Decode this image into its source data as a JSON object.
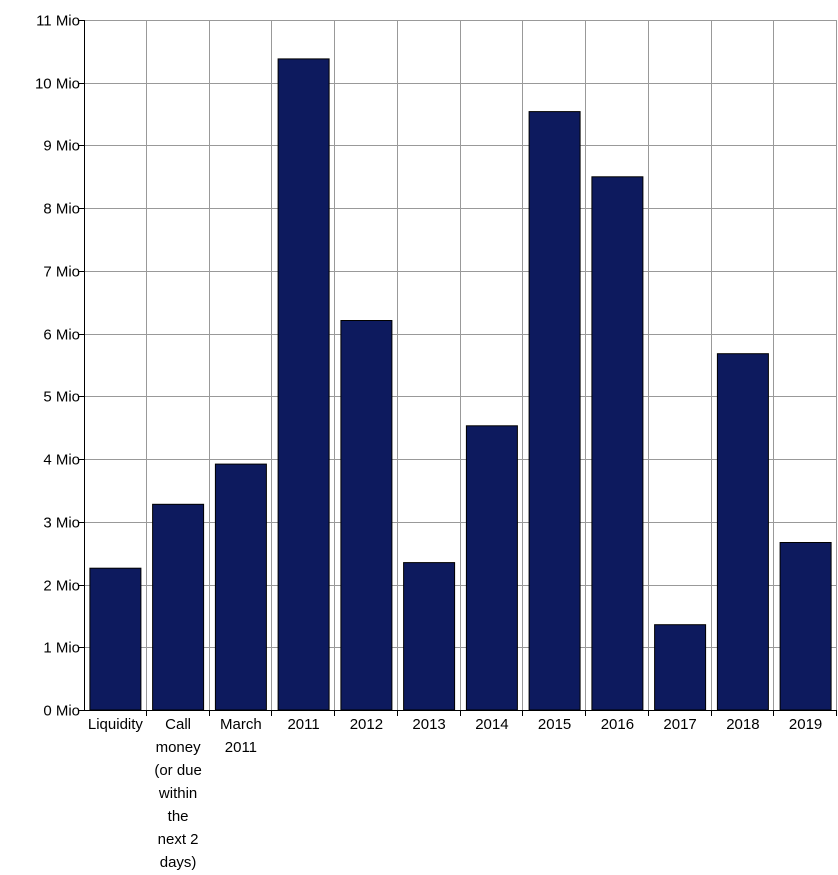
{
  "chart_data": {
    "type": "bar",
    "categories": [
      [
        "Liquidity"
      ],
      [
        "Call",
        "money",
        "(or due",
        "within",
        "the",
        "next 2",
        "days)"
      ],
      [
        "March",
        "2011"
      ],
      [
        "2011"
      ],
      [
        "2012"
      ],
      [
        "2013"
      ],
      [
        "2014"
      ],
      [
        "2015"
      ],
      [
        "2016"
      ],
      [
        "2017"
      ],
      [
        "2018"
      ],
      [
        "2019"
      ]
    ],
    "values": [
      2260000,
      3280000,
      3920000,
      10380000,
      6210000,
      2350000,
      4530000,
      9540000,
      8500000,
      1360000,
      5680000,
      2670000
    ],
    "ylim": [
      0,
      11000000
    ],
    "y_ticks": [
      {
        "value": 0,
        "label": "0 Mio"
      },
      {
        "value": 1000000,
        "label": "1 Mio"
      },
      {
        "value": 2000000,
        "label": "2 Mio"
      },
      {
        "value": 3000000,
        "label": "3 Mio"
      },
      {
        "value": 4000000,
        "label": "4 Mio"
      },
      {
        "value": 5000000,
        "label": "5 Mio"
      },
      {
        "value": 6000000,
        "label": "6 Mio"
      },
      {
        "value": 7000000,
        "label": "7 Mio"
      },
      {
        "value": 8000000,
        "label": "8 Mio"
      },
      {
        "value": 9000000,
        "label": "9 Mio"
      },
      {
        "value": 10000000,
        "label": "10 Mio"
      },
      {
        "value": 11000000,
        "label": "11 Mio"
      }
    ],
    "grid": true,
    "legend": "none",
    "colors": {
      "bar": "#0d1a5e",
      "bar_border": "#000000",
      "grid": "#999999",
      "axis": "#000000"
    }
  }
}
